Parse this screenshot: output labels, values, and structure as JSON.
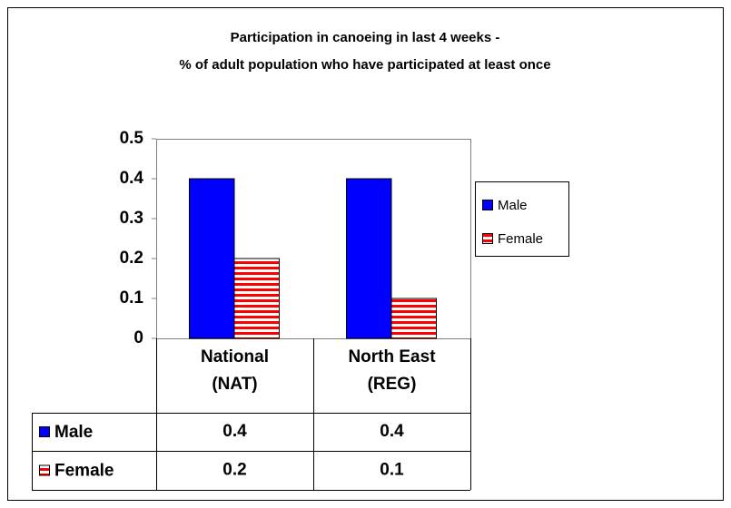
{
  "chart_data": {
    "type": "bar",
    "title": [
      "Participation in canoeing in last 4 weeks -",
      "% of adult population who have participated at least once"
    ],
    "categories": [
      "National (NAT)",
      "North East (REG)"
    ],
    "series": [
      {
        "name": "Male",
        "color": "#0000ff",
        "values": [
          0.4,
          0.4
        ]
      },
      {
        "name": "Female",
        "color": "#ff0000",
        "values": [
          0.2,
          0.1
        ]
      }
    ],
    "ylim": [
      0,
      0.5
    ],
    "yticks": [
      0,
      0.1,
      0.2,
      0.3,
      0.4,
      0.5
    ],
    "grid": false,
    "legend": "right"
  }
}
